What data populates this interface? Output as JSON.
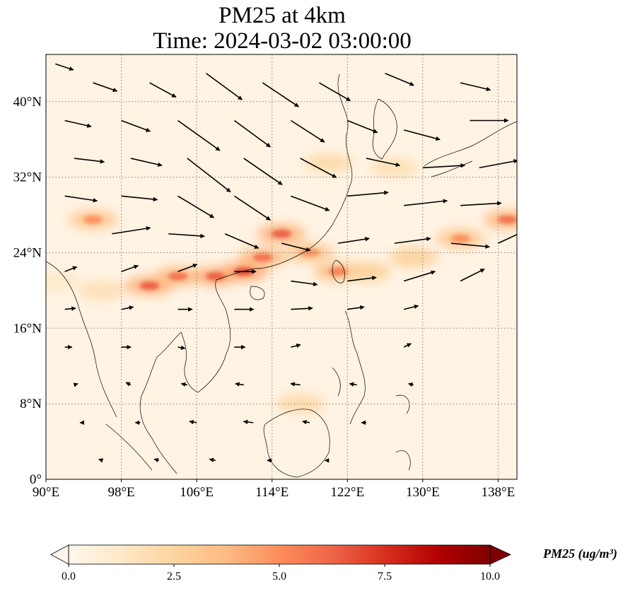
{
  "title": {
    "line1": "PM25 at 4km",
    "line2": "Time: 2024-03-02 03:00:00"
  },
  "map": {
    "lon_range": [
      90,
      140
    ],
    "lat_range": [
      0,
      45
    ],
    "lon_ticks": [
      {
        "value": 90,
        "label": "90°E"
      },
      {
        "value": 98,
        "label": "98°E"
      },
      {
        "value": 106,
        "label": "106°E"
      },
      {
        "value": 114,
        "label": "114°E"
      },
      {
        "value": 122,
        "label": "122°E"
      },
      {
        "value": 130,
        "label": "130°E"
      },
      {
        "value": 138,
        "label": "138°E"
      }
    ],
    "lat_ticks": [
      {
        "value": 0,
        "label": "0°"
      },
      {
        "value": 8,
        "label": "8°N"
      },
      {
        "value": 16,
        "label": "16°N"
      },
      {
        "value": 24,
        "label": "24°N"
      },
      {
        "value": 32,
        "label": "32°N"
      },
      {
        "value": 40,
        "label": "40°N"
      }
    ],
    "gridlines": true,
    "colormap": "OrRd",
    "pm25_plume": [
      {
        "lon": 91,
        "lat": 21,
        "value": 2.0
      },
      {
        "lon": 96,
        "lat": 20,
        "value": 3.0
      },
      {
        "lon": 101,
        "lat": 20.5,
        "value": 6.5
      },
      {
        "lon": 104,
        "lat": 21.5,
        "value": 6.0
      },
      {
        "lon": 108,
        "lat": 21.5,
        "value": 6.5
      },
      {
        "lon": 111,
        "lat": 22,
        "value": 7.0
      },
      {
        "lon": 113,
        "lat": 23.5,
        "value": 6.0
      },
      {
        "lon": 115,
        "lat": 26,
        "value": 6.5
      },
      {
        "lon": 118,
        "lat": 24,
        "value": 5.0
      },
      {
        "lon": 121,
        "lat": 22,
        "value": 5.5
      },
      {
        "lon": 124,
        "lat": 22,
        "value": 4.5
      },
      {
        "lon": 129,
        "lat": 23.5,
        "value": 4.5
      },
      {
        "lon": 134,
        "lat": 25.5,
        "value": 5.0
      },
      {
        "lon": 139,
        "lat": 27.5,
        "value": 6.0
      },
      {
        "lon": 120,
        "lat": 33.5,
        "value": 3.5
      },
      {
        "lon": 127,
        "lat": 33,
        "value": 3.0
      },
      {
        "lon": 95,
        "lat": 27.5,
        "value": 5.0
      },
      {
        "lon": 117,
        "lat": 8,
        "value": 3.5
      }
    ],
    "wind_vectors": [
      {
        "lon": 91,
        "lat": 44,
        "u": 1.5,
        "v": -0.5
      },
      {
        "lon": 95,
        "lat": 42,
        "u": 2.0,
        "v": -0.7
      },
      {
        "lon": 101,
        "lat": 42,
        "u": 2.2,
        "v": -1.2
      },
      {
        "lon": 107,
        "lat": 43,
        "u": 3.0,
        "v": -2.2
      },
      {
        "lon": 113,
        "lat": 42,
        "u": 3.0,
        "v": -2.0
      },
      {
        "lon": 119,
        "lat": 42,
        "u": 2.6,
        "v": -1.5
      },
      {
        "lon": 126,
        "lat": 43,
        "u": 2.4,
        "v": -1.0
      },
      {
        "lon": 134,
        "lat": 42,
        "u": 2.5,
        "v": -0.6
      },
      {
        "lon": 92,
        "lat": 38,
        "u": 2.2,
        "v": -0.5
      },
      {
        "lon": 98,
        "lat": 38,
        "u": 2.4,
        "v": -0.9
      },
      {
        "lon": 104,
        "lat": 38,
        "u": 3.5,
        "v": -2.5
      },
      {
        "lon": 110,
        "lat": 38,
        "u": 3.0,
        "v": -2.2
      },
      {
        "lon": 116,
        "lat": 38,
        "u": 2.8,
        "v": -1.8
      },
      {
        "lon": 122,
        "lat": 38,
        "u": 2.5,
        "v": -1.0
      },
      {
        "lon": 128,
        "lat": 37,
        "u": 3.0,
        "v": -0.8
      },
      {
        "lon": 135,
        "lat": 38,
        "u": 3.2,
        "v": 0.0
      },
      {
        "lon": 93,
        "lat": 34,
        "u": 2.5,
        "v": -0.3
      },
      {
        "lon": 99,
        "lat": 34,
        "u": 2.6,
        "v": -0.6
      },
      {
        "lon": 105,
        "lat": 34,
        "u": 3.6,
        "v": -2.8
      },
      {
        "lon": 111,
        "lat": 34,
        "u": 3.2,
        "v": -2.2
      },
      {
        "lon": 117,
        "lat": 34,
        "u": 3.0,
        "v": -1.6
      },
      {
        "lon": 124,
        "lat": 34,
        "u": 2.8,
        "v": -0.6
      },
      {
        "lon": 130,
        "lat": 33,
        "u": 3.5,
        "v": 0.2
      },
      {
        "lon": 136,
        "lat": 33,
        "u": 3.2,
        "v": 0.6
      },
      {
        "lon": 92,
        "lat": 30,
        "u": 2.7,
        "v": -0.4
      },
      {
        "lon": 98,
        "lat": 30,
        "u": 3.0,
        "v": -0.3
      },
      {
        "lon": 104,
        "lat": 30,
        "u": 3.0,
        "v": -1.8
      },
      {
        "lon": 110,
        "lat": 30,
        "u": 3.0,
        "v": -2.0
      },
      {
        "lon": 116,
        "lat": 30,
        "u": 3.2,
        "v": -1.2
      },
      {
        "lon": 122,
        "lat": 30,
        "u": 3.4,
        "v": 0.3
      },
      {
        "lon": 128,
        "lat": 29,
        "u": 3.6,
        "v": 0.4
      },
      {
        "lon": 134,
        "lat": 29,
        "u": 3.4,
        "v": 0.2
      },
      {
        "lon": 97,
        "lat": 26,
        "u": 3.2,
        "v": 0.5
      },
      {
        "lon": 103,
        "lat": 26,
        "u": 3.0,
        "v": -0.2
      },
      {
        "lon": 109,
        "lat": 26,
        "u": 2.8,
        "v": -1.2
      },
      {
        "lon": 115,
        "lat": 25,
        "u": 2.4,
        "v": -0.6
      },
      {
        "lon": 121,
        "lat": 25,
        "u": 2.6,
        "v": 0.4
      },
      {
        "lon": 127,
        "lat": 25,
        "u": 3.0,
        "v": 0.4
      },
      {
        "lon": 133,
        "lat": 25,
        "u": 3.2,
        "v": -0.3
      },
      {
        "lon": 138,
        "lat": 25,
        "u": 2.8,
        "v": 1.3
      },
      {
        "lon": 92,
        "lat": 22,
        "u": 1.0,
        "v": 0.4
      },
      {
        "lon": 98,
        "lat": 22,
        "u": 1.4,
        "v": 0.5
      },
      {
        "lon": 104,
        "lat": 22,
        "u": 1.6,
        "v": 0.6
      },
      {
        "lon": 110,
        "lat": 22,
        "u": 1.8,
        "v": 0.0
      },
      {
        "lon": 116,
        "lat": 21,
        "u": 2.2,
        "v": -0.3
      },
      {
        "lon": 122,
        "lat": 21,
        "u": 2.4,
        "v": 0.3
      },
      {
        "lon": 128,
        "lat": 21,
        "u": 2.6,
        "v": 0.8
      },
      {
        "lon": 134,
        "lat": 21,
        "u": 2.0,
        "v": 1.0
      },
      {
        "lon": 92,
        "lat": 18,
        "u": 0.9,
        "v": 0.1
      },
      {
        "lon": 98,
        "lat": 18,
        "u": 1.0,
        "v": 0.2
      },
      {
        "lon": 104,
        "lat": 18,
        "u": 1.2,
        "v": 0.0
      },
      {
        "lon": 110,
        "lat": 18,
        "u": 1.6,
        "v": 0.0
      },
      {
        "lon": 116,
        "lat": 18,
        "u": 1.8,
        "v": 0.1
      },
      {
        "lon": 122,
        "lat": 18,
        "u": 1.4,
        "v": 0.2
      },
      {
        "lon": 128,
        "lat": 18,
        "u": 1.2,
        "v": 0.3
      },
      {
        "lon": 92,
        "lat": 14,
        "u": 0.6,
        "v": 0.0
      },
      {
        "lon": 98,
        "lat": 14,
        "u": 0.8,
        "v": 0.0
      },
      {
        "lon": 104,
        "lat": 14,
        "u": 0.6,
        "v": -0.1
      },
      {
        "lon": 110,
        "lat": 14,
        "u": 0.9,
        "v": 0.0
      },
      {
        "lon": 116,
        "lat": 14,
        "u": 0.8,
        "v": 0.2
      },
      {
        "lon": 128,
        "lat": 14,
        "u": 0.6,
        "v": 0.3
      },
      {
        "lon": 93,
        "lat": 10,
        "u": 0.3,
        "v": 0.1
      },
      {
        "lon": 99,
        "lat": 10,
        "u": -0.4,
        "v": 0.2
      },
      {
        "lon": 105,
        "lat": 10,
        "u": -0.5,
        "v": 0.1
      },
      {
        "lon": 111,
        "lat": 10,
        "u": -0.7,
        "v": 0.1
      },
      {
        "lon": 117,
        "lat": 10,
        "u": -0.8,
        "v": 0.1
      },
      {
        "lon": 123,
        "lat": 10,
        "u": -0.6,
        "v": 0.1
      },
      {
        "lon": 129,
        "lat": 10,
        "u": -0.4,
        "v": 0.1
      },
      {
        "lon": 94,
        "lat": 6,
        "u": -0.3,
        "v": 0.0
      },
      {
        "lon": 100,
        "lat": 6,
        "u": -0.4,
        "v": 0.0
      },
      {
        "lon": 106,
        "lat": 6,
        "u": -0.6,
        "v": 0.1
      },
      {
        "lon": 112,
        "lat": 6,
        "u": -0.8,
        "v": 0.1
      },
      {
        "lon": 118,
        "lat": 6,
        "u": -0.6,
        "v": 0.1
      },
      {
        "lon": 124,
        "lat": 6,
        "u": -0.4,
        "v": 0.0
      },
      {
        "lon": 96,
        "lat": 2,
        "u": -0.3,
        "v": 0.1
      },
      {
        "lon": 102,
        "lat": 2,
        "u": -0.4,
        "v": 0.1
      },
      {
        "lon": 108,
        "lat": 2,
        "u": -0.5,
        "v": 0.1
      },
      {
        "lon": 114,
        "lat": 2,
        "u": -0.4,
        "v": 0.0
      },
      {
        "lon": 120,
        "lat": 2,
        "u": -0.3,
        "v": 0.0
      }
    ]
  },
  "colorbar": {
    "label": "PM25 (ug/m³)",
    "min": 0.0,
    "max": 10.0,
    "extend": "both",
    "ticks": [
      "0.0",
      "2.5",
      "5.0",
      "7.5",
      "10.0"
    ]
  },
  "colors": {
    "cmap_low": "#fff7ec",
    "cmap_mid": "#fc8d59",
    "cmap_high": "#7f0000",
    "gridline": "#808080",
    "coastline": "#000000"
  }
}
